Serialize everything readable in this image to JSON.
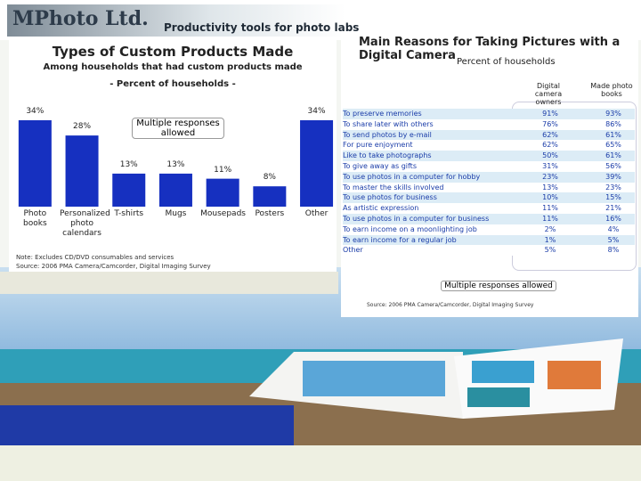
{
  "header": {
    "logo": "MPhoto Ltd.",
    "tagline": "Productivity tools for photo labs"
  },
  "chart_data": {
    "type": "bar",
    "title": "Types of Custom Products Made",
    "subtitle": [
      "Among households that had custom products made",
      "- Percent of households -"
    ],
    "categories": [
      "Photo books",
      "Personalized photo calendars",
      "T-shirts",
      "Mugs",
      "Mousepads",
      "Posters",
      "Other"
    ],
    "values": [
      34,
      28,
      13,
      13,
      11,
      8,
      34
    ],
    "value_labels": [
      "34%",
      "28%",
      "13%",
      "13%",
      "11%",
      "8%",
      "34%"
    ],
    "color": "#1630c0",
    "annotation": "Multiple responses allowed",
    "notes": [
      "Note: Excludes CD/DVD consumables and services",
      "Source: 2006 PMA Camera/Camcorder, Digital Imaging Survey"
    ]
  },
  "table": {
    "title": "Main Reasons for Taking Pictures with a Digital Camera",
    "subtitle": "Percent of households",
    "columns": [
      "Digital camera owners",
      "Made photo books"
    ],
    "rows": [
      [
        "To preserve memories",
        "91%",
        "93%"
      ],
      [
        "To share later with others",
        "76%",
        "86%"
      ],
      [
        "To send photos by e-mail",
        "62%",
        "61%"
      ],
      [
        "For pure enjoyment",
        "62%",
        "65%"
      ],
      [
        "Like to take photographs",
        "50%",
        "61%"
      ],
      [
        "To give away as gifts",
        "31%",
        "56%"
      ],
      [
        "To use photos in a computer for hobby",
        "23%",
        "39%"
      ],
      [
        "To master the skills involved",
        "13%",
        "23%"
      ],
      [
        "To use photos for business",
        "10%",
        "15%"
      ],
      [
        "As artistic expression",
        "11%",
        "21%"
      ],
      [
        "To use photos in a computer for business",
        "11%",
        "16%"
      ],
      [
        "To earn income on a moonlighting job",
        "2%",
        "4%"
      ],
      [
        "To earn income for a regular job",
        "1%",
        "5%"
      ],
      [
        "Other",
        "5%",
        "8%"
      ]
    ],
    "note": "Multiple responses allowed",
    "source": "Source: 2006 PMA Camera/Camcorder, Digital Imaging Survey"
  }
}
